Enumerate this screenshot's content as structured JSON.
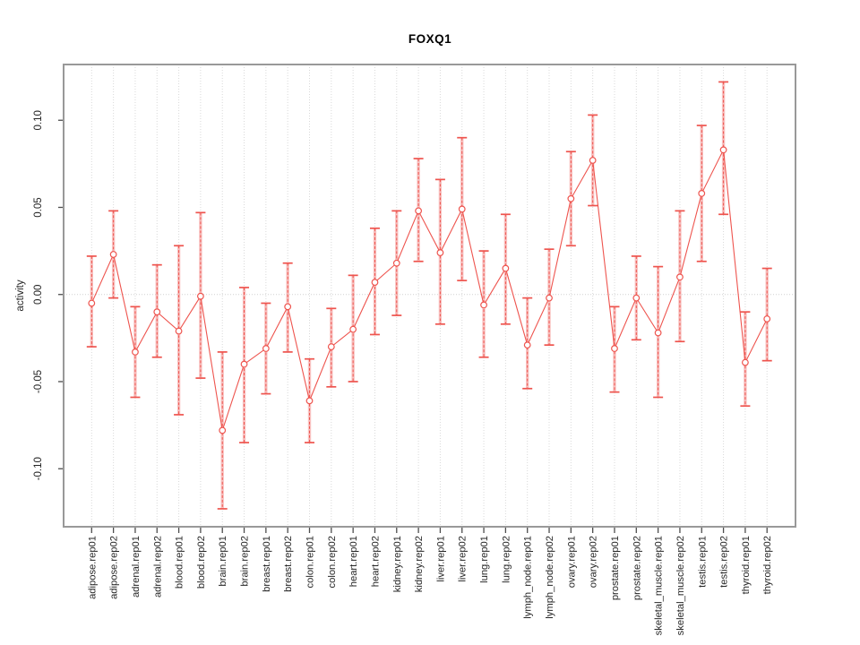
{
  "page": {
    "title": "FOXQ1"
  },
  "chart_data": {
    "type": "line",
    "subtype": "points-with-error-bars",
    "title": "FOXQ1",
    "xlabel": "",
    "ylabel": "activity",
    "legend": "none",
    "grid": "vertical dotted gridline at every category; horizontal dotted line at y=0",
    "ylim": [
      -0.1333,
      0.132
    ],
    "yticks": [
      -0.1,
      -0.05,
      0.0,
      0.05,
      0.1
    ],
    "ytick_labels": [
      "-0.10",
      "-0.05",
      "0.00",
      "0.05",
      "0.10"
    ],
    "categories": [
      "adipose.rep01",
      "adipose.rep02",
      "adrenal.rep01",
      "adrenal.rep02",
      "blood.rep01",
      "blood.rep02",
      "brain.rep01",
      "brain.rep02",
      "breast.rep01",
      "breast.rep02",
      "colon.rep01",
      "colon.rep02",
      "heart.rep01",
      "heart.rep02",
      "kidney.rep01",
      "kidney.rep02",
      "liver.rep01",
      "liver.rep02",
      "lung.rep01",
      "lung.rep02",
      "lymph_node.rep01",
      "lymph_node.rep02",
      "ovary.rep01",
      "ovary.rep02",
      "prostate.rep01",
      "prostate.rep02",
      "skeletal_muscle.rep01",
      "skeletal_muscle.rep02",
      "testis.rep01",
      "testis.rep02",
      "thyroid.rep01",
      "thyroid.rep02"
    ],
    "series": [
      {
        "name": "activity",
        "values": [
          -0.005,
          0.023,
          -0.033,
          -0.01,
          -0.021,
          -0.001,
          -0.078,
          -0.04,
          -0.031,
          -0.007,
          -0.061,
          -0.03,
          -0.02,
          0.007,
          0.018,
          0.048,
          0.024,
          0.049,
          -0.006,
          0.015,
          -0.029,
          -0.002,
          0.055,
          0.077,
          -0.031,
          -0.002,
          -0.022,
          0.01,
          0.058,
          0.083,
          -0.039,
          -0.014
        ],
        "err_low": [
          -0.03,
          -0.002,
          -0.059,
          -0.036,
          -0.069,
          -0.048,
          -0.123,
          -0.085,
          -0.057,
          -0.033,
          -0.085,
          -0.053,
          -0.05,
          -0.023,
          -0.012,
          0.019,
          -0.017,
          0.008,
          -0.036,
          -0.017,
          -0.054,
          -0.029,
          0.028,
          0.051,
          -0.056,
          -0.026,
          -0.059,
          -0.027,
          0.019,
          0.046,
          -0.064,
          -0.038
        ],
        "err_high": [
          0.022,
          0.048,
          -0.007,
          0.017,
          0.028,
          0.047,
          -0.033,
          0.004,
          -0.005,
          0.018,
          -0.037,
          -0.008,
          0.011,
          0.038,
          0.048,
          0.078,
          0.066,
          0.09,
          0.025,
          0.046,
          -0.002,
          0.026,
          0.082,
          0.103,
          -0.007,
          0.022,
          0.016,
          0.048,
          0.097,
          0.122,
          -0.01,
          0.015
        ]
      }
    ],
    "style": {
      "point_marker": "open-circle",
      "series_color": "#ee544e",
      "error_bar_fill_color": "#f5928f",
      "gridline_color": "#d9d9d9",
      "zero_line_color": "#d0d0d0",
      "box_color": "#999999",
      "tick_color": "#4d4d4d",
      "text_color": "#262626"
    }
  }
}
